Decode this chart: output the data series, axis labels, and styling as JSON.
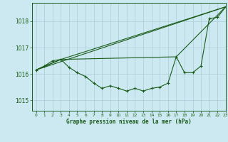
{
  "title": "Graphe pression niveau de la mer (hPa)",
  "background_color": "#cce8f0",
  "grid_color": "#aaccd8",
  "line_color": "#1a5c1a",
  "xlim": [
    -0.5,
    23
  ],
  "ylim": [
    1014.6,
    1018.7
  ],
  "yticks": [
    1015,
    1016,
    1017,
    1018
  ],
  "xticks": [
    0,
    1,
    2,
    3,
    4,
    5,
    6,
    7,
    8,
    9,
    10,
    11,
    12,
    13,
    14,
    15,
    16,
    17,
    18,
    19,
    20,
    21,
    22,
    23
  ],
  "line_straight1": {
    "x": [
      0,
      23
    ],
    "y": [
      1016.15,
      1018.55
    ]
  },
  "line_straight2": {
    "x": [
      0,
      3,
      23
    ],
    "y": [
      1016.15,
      1016.55,
      1018.55
    ]
  },
  "line_straight3": {
    "x": [
      0,
      3,
      17,
      23
    ],
    "y": [
      1016.15,
      1016.55,
      1016.65,
      1018.55
    ]
  },
  "line_curve": {
    "x": [
      0,
      1,
      2,
      3,
      4,
      5,
      6,
      7,
      8,
      9,
      10,
      11,
      12,
      13,
      14,
      15,
      16,
      17,
      18,
      19,
      20,
      21,
      22,
      23
    ],
    "y": [
      1016.15,
      1016.3,
      1016.5,
      1016.55,
      1016.25,
      1016.05,
      1015.9,
      1015.65,
      1015.45,
      1015.55,
      1015.45,
      1015.35,
      1015.45,
      1015.35,
      1015.45,
      1015.5,
      1015.65,
      1016.65,
      1016.05,
      1016.05,
      1016.3,
      1018.1,
      1018.15,
      1018.55
    ]
  }
}
